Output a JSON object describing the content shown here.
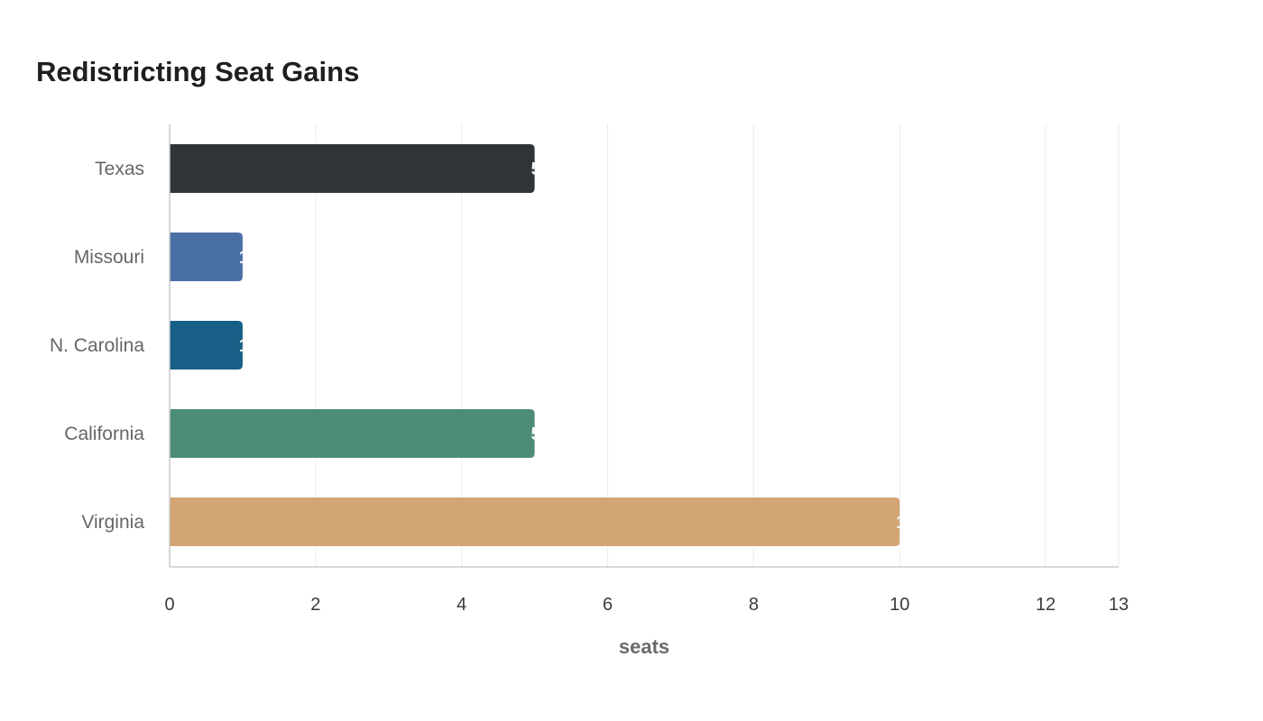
{
  "chart_data": {
    "type": "bar",
    "orientation": "horizontal",
    "title": "Redistricting Seat Gains",
    "xlabel": "seats",
    "ylabel": "",
    "categories": [
      "Texas",
      "Missouri",
      "N. Carolina",
      "California",
      "Virginia"
    ],
    "values": [
      5,
      1,
      1,
      5,
      10
    ],
    "colors": [
      "#2e3437",
      "#4a6fa5",
      "#175f87",
      "#4e8c7a",
      "#d3a574"
    ],
    "xlim": [
      0,
      13
    ],
    "xticks": [
      0,
      2,
      4,
      6,
      8,
      10,
      12,
      13
    ],
    "value_labels": [
      "5",
      "1",
      "1",
      "5",
      "10"
    ],
    "grid": "vertical",
    "legend": "none"
  }
}
